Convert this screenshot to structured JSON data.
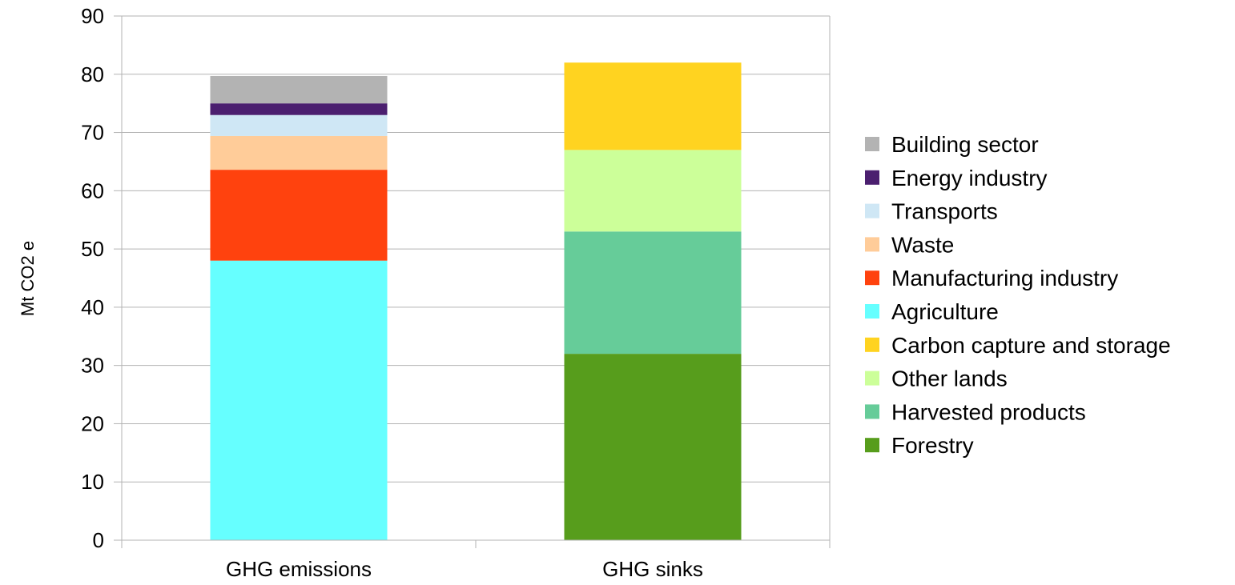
{
  "chart_data": {
    "type": "bar",
    "stacked": true,
    "categories": [
      "GHG emissions",
      "GHG sinks"
    ],
    "ylabel": "Mt CO2 e",
    "xlabel": "",
    "ylim": [
      0,
      90
    ],
    "yticks": [
      0,
      10,
      20,
      30,
      40,
      50,
      60,
      70,
      80,
      90
    ],
    "grid": true,
    "legend_position": "right",
    "series": [
      {
        "name": "Forestry",
        "color": "#579d1c",
        "values": [
          0,
          32
        ]
      },
      {
        "name": "Harvested products",
        "color": "#66cc99",
        "values": [
          0,
          21
        ]
      },
      {
        "name": "Other lands",
        "color": "#ccff99",
        "values": [
          0,
          14
        ]
      },
      {
        "name": "Carbon capture and storage",
        "color": "#ffd320",
        "values": [
          0,
          15
        ]
      },
      {
        "name": "Agriculture",
        "color": "#66ffff",
        "values": [
          48,
          0
        ]
      },
      {
        "name": "Manufacturing industry",
        "color": "#ff420e",
        "values": [
          15.6,
          0
        ]
      },
      {
        "name": "Waste",
        "color": "#ffcc99",
        "values": [
          5.8,
          0
        ]
      },
      {
        "name": "Transports",
        "color": "#cfe7f5",
        "values": [
          3.6,
          0
        ]
      },
      {
        "name": "Energy industry",
        "color": "#4b1f6f",
        "values": [
          2,
          0
        ]
      },
      {
        "name": "Building sector",
        "color": "#b3b3b3",
        "values": [
          4.7,
          0
        ]
      }
    ],
    "legend_order": [
      "Building sector",
      "Energy industry",
      "Transports",
      "Waste",
      "Manufacturing industry",
      "Agriculture",
      "Carbon capture and storage",
      "Other lands",
      "Harvested products",
      "Forestry"
    ]
  }
}
